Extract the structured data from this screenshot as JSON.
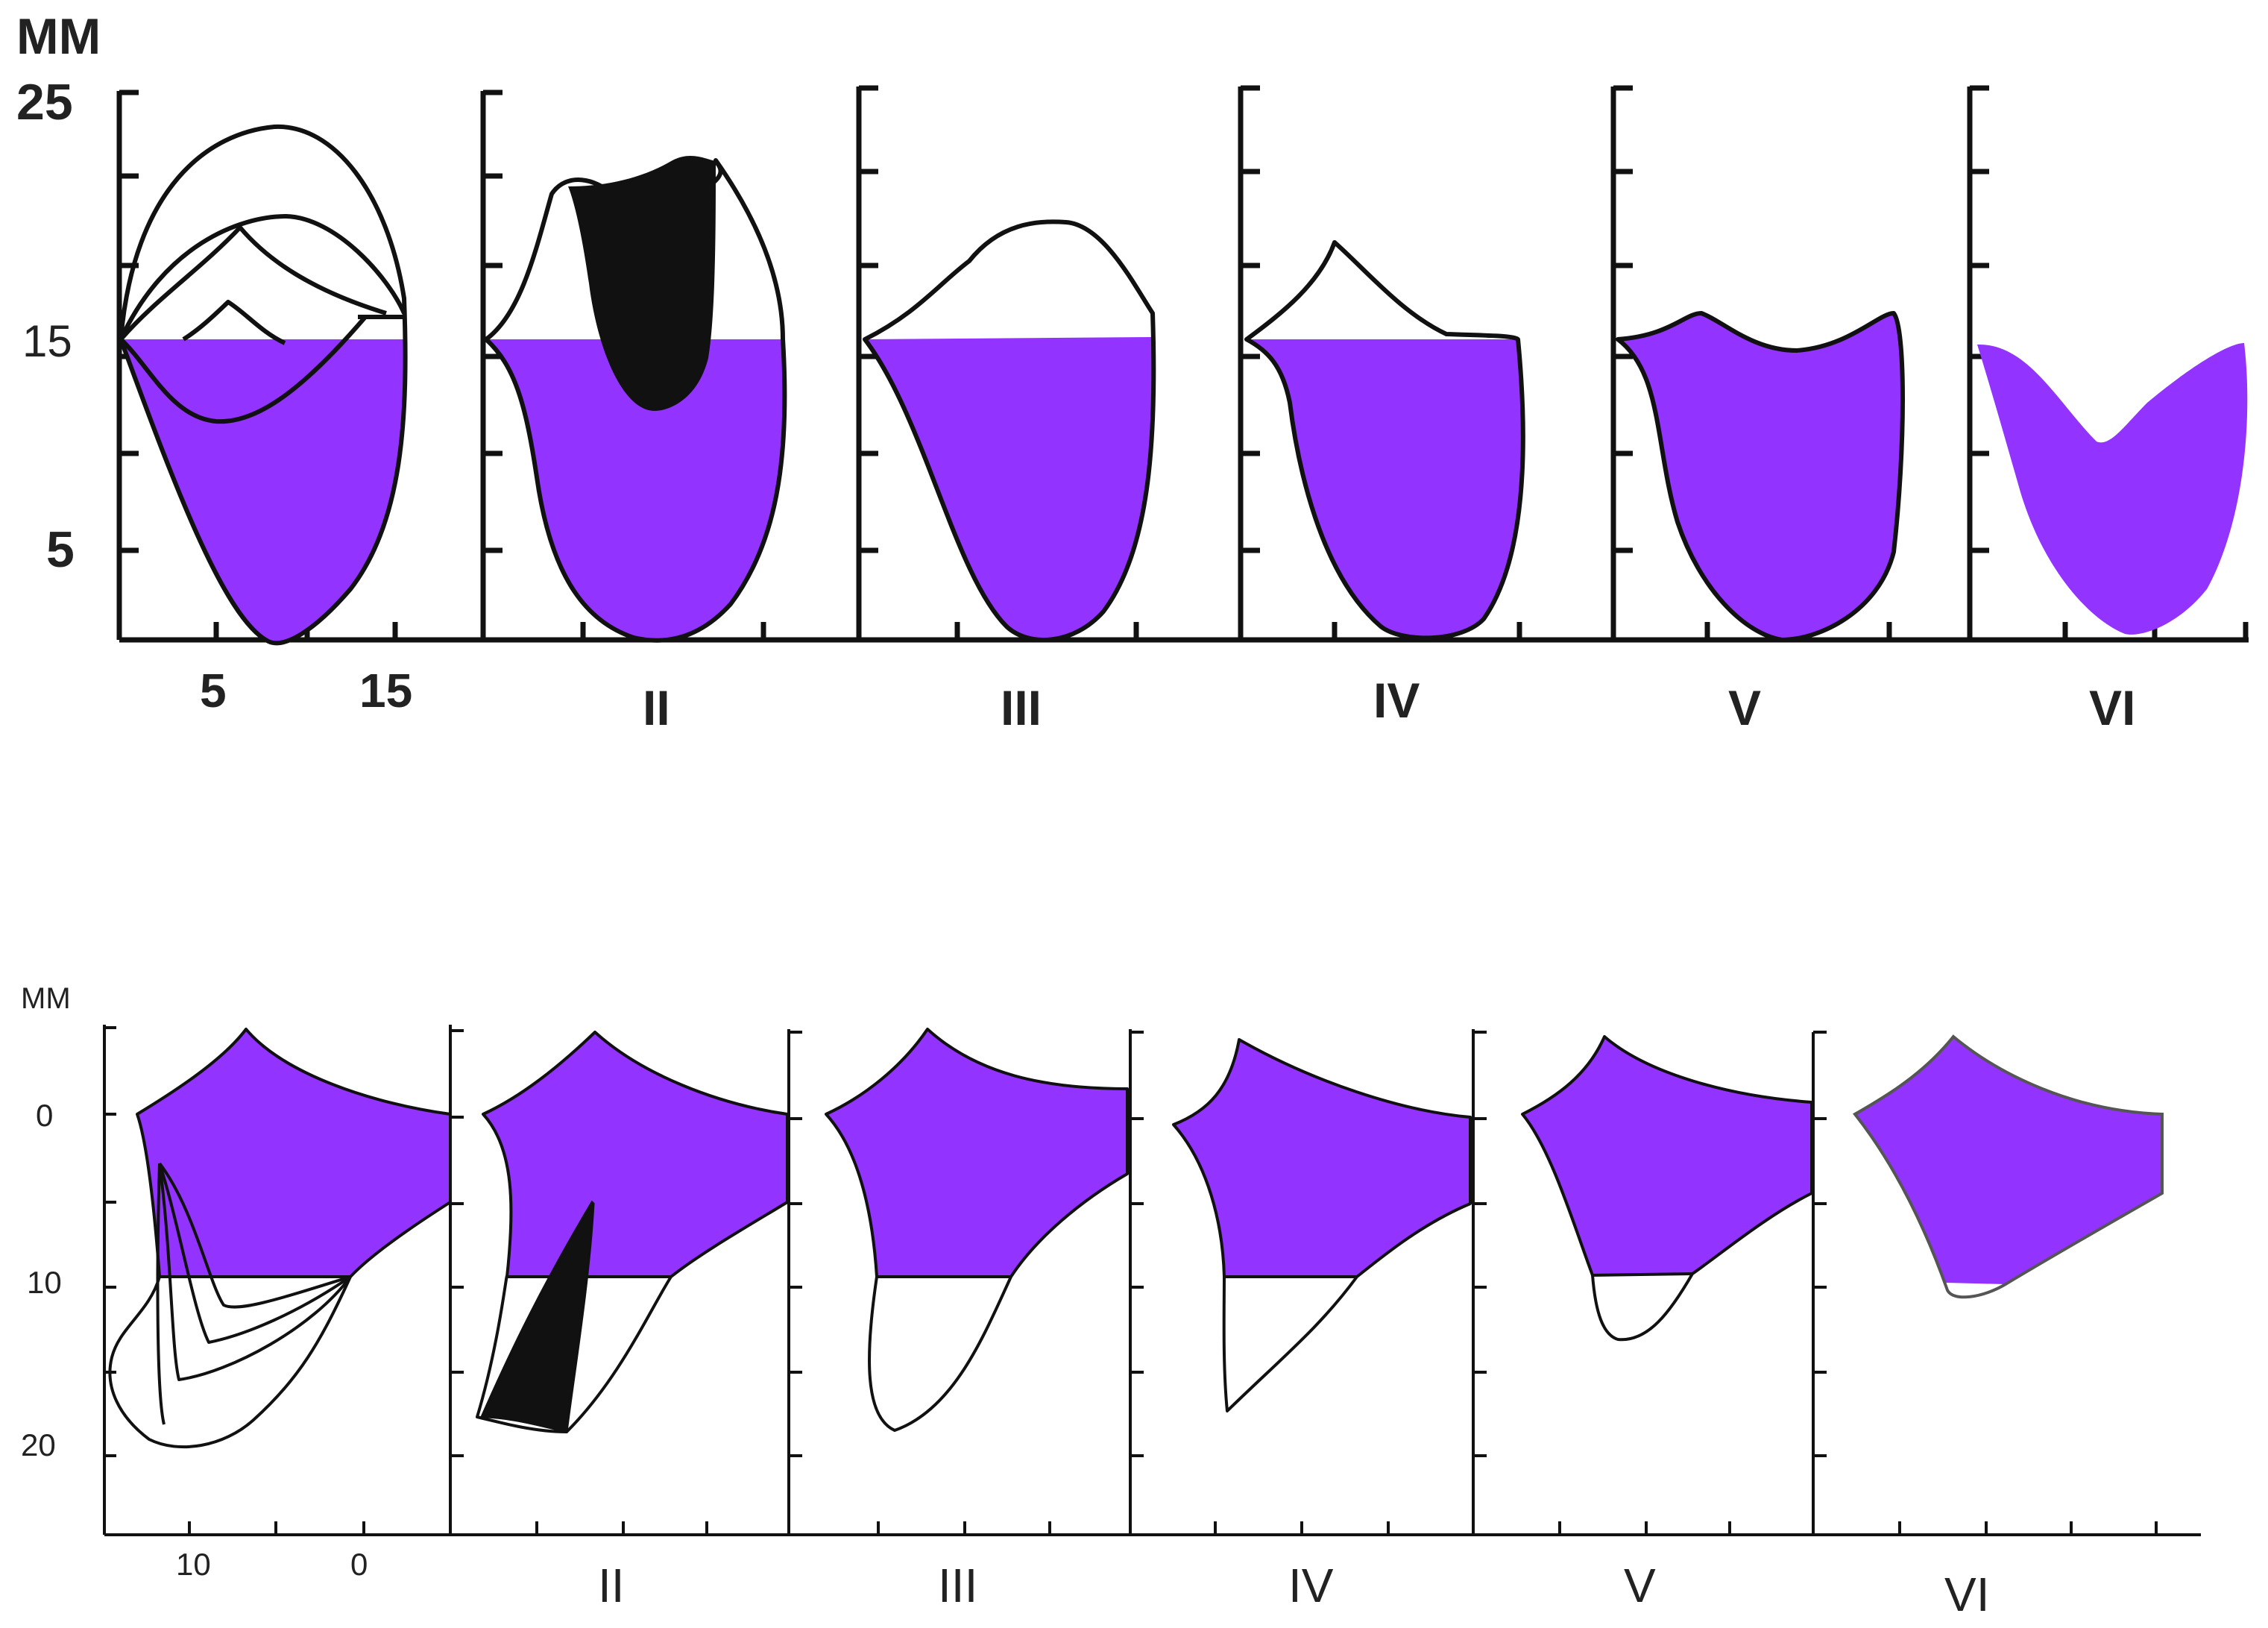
{
  "colors": {
    "fill": "#9333ff",
    "dark": "#111111",
    "background": "#ffffff"
  },
  "top_panel": {
    "unit_label": "MM",
    "y_ticks": [
      "25",
      "15",
      "5"
    ],
    "x_ticks": [
      "5",
      "15"
    ],
    "stage_labels": [
      "II",
      "III",
      "IV",
      "V",
      "VI"
    ]
  },
  "bottom_panel": {
    "unit_label": "MM",
    "y_ticks": [
      "0",
      "10",
      "20"
    ],
    "x_ticks": [
      "10",
      "0"
    ],
    "stage_labels": [
      "II",
      "III",
      "IV",
      "V",
      "VI"
    ]
  }
}
